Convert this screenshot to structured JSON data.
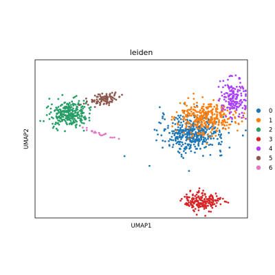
{
  "chart_data": {
    "type": "scatter",
    "title": "leiden",
    "xlabel": "UMAP1",
    "ylabel": "UMAP2",
    "xlim": [
      -2,
      22
    ],
    "ylim": [
      -7,
      12
    ],
    "grid": false,
    "ticks_visible": false,
    "legend": {
      "placement": "right",
      "entries": [
        "0",
        "1",
        "2",
        "3",
        "4",
        "5",
        "6"
      ]
    },
    "colors": {
      "0": "#1f77b4",
      "1": "#ff7f0e",
      "2": "#279e68",
      "3": "#d62728",
      "4": "#aa40fc",
      "5": "#8c564b",
      "6": "#e377c2"
    },
    "clusters": [
      {
        "name": "0",
        "center": [
          15.8,
          3.1
        ],
        "spread": [
          1.8,
          1.1
        ],
        "n_points": 420
      },
      {
        "name": "1",
        "center": [
          17.4,
          5.1
        ],
        "spread": [
          1.6,
          1.0
        ],
        "n_points": 330
      },
      {
        "name": "2",
        "center": [
          1.8,
          5.5
        ],
        "spread": [
          1.1,
          0.75
        ],
        "n_points": 280
      },
      {
        "name": "3",
        "center": [
          16.9,
          -5.0
        ],
        "spread": [
          1.0,
          0.55
        ],
        "n_points": 200
      },
      {
        "name": "4",
        "center": [
          20.4,
          7.5
        ],
        "spread": [
          0.8,
          1.2
        ],
        "n_points": 160
      },
      {
        "name": "5",
        "center": [
          5.8,
          7.2
        ],
        "spread": [
          1.1,
          0.35
        ],
        "n_points": 90
      },
      {
        "name": "6",
        "center": [
          5.3,
          3.2
        ],
        "spread": [
          1.0,
          0.35
        ],
        "n_points": 22
      }
    ]
  }
}
